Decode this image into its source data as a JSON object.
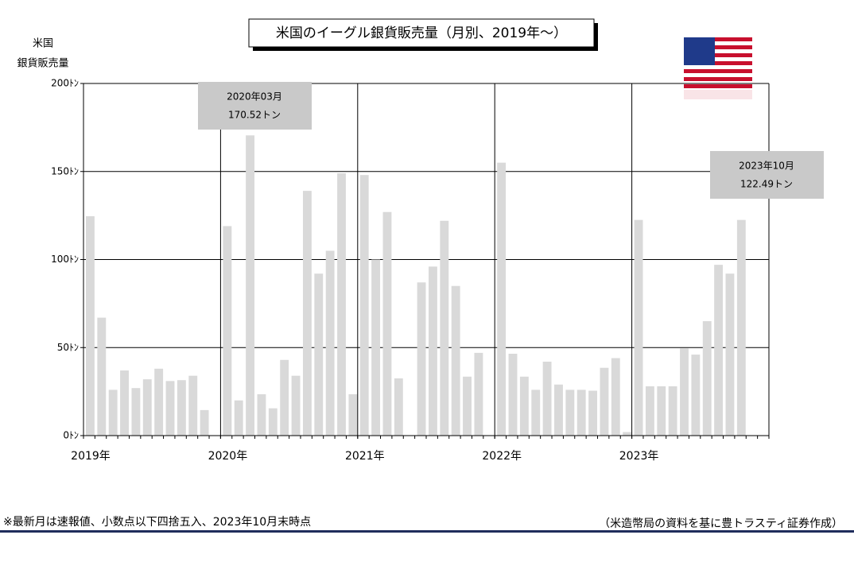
{
  "chart_data": {
    "type": "bar",
    "title": "米国のイーグル銀貨販売量（月別、2019年～）",
    "y_label": [
      "米国",
      "銀貨販売量"
    ],
    "categories": [
      "2019年",
      null,
      null,
      null,
      null,
      null,
      null,
      null,
      null,
      null,
      null,
      null,
      "2020年",
      null,
      null,
      null,
      null,
      null,
      null,
      null,
      null,
      null,
      null,
      null,
      "2021年",
      null,
      null,
      null,
      null,
      null,
      null,
      null,
      null,
      null,
      null,
      null,
      "2022年",
      null,
      null,
      null,
      null,
      null,
      null,
      null,
      null,
      null,
      null,
      null,
      "2023年",
      null,
      null,
      null,
      null,
      null,
      null,
      null,
      null,
      null,
      null,
      null
    ],
    "values": [
      124.6,
      67,
      26,
      37,
      27,
      32,
      38,
      31,
      31.5,
      34,
      14.5,
      0,
      119,
      20,
      170.52,
      23.5,
      15.5,
      43,
      34,
      139,
      92,
      105,
      149,
      23.5,
      148,
      100,
      127,
      32.5,
      0,
      87,
      96,
      122,
      85,
      33.5,
      47,
      0,
      155,
      46.5,
      33.5,
      26,
      42,
      29,
      26,
      26,
      25.5,
      38.5,
      44,
      2,
      122.5,
      28,
      28,
      28,
      49.5,
      46,
      65,
      97,
      92,
      122.49,
      null,
      null
    ],
    "color": "#d9d9d9",
    "ylim": [
      0,
      200
    ],
    "yticks": [
      {
        "value": 0,
        "label": "0ﾄﾝ"
      },
      {
        "value": 50,
        "label": "50ﾄﾝ"
      },
      {
        "value": 100,
        "label": "100ﾄﾝ"
      },
      {
        "value": 150,
        "label": "150ﾄﾝ"
      },
      {
        "value": 200,
        "label": "200ﾄﾝ"
      }
    ],
    "grid": true,
    "annotations": [
      {
        "lines": [
          "2020年03月",
          "170.52トン"
        ]
      },
      {
        "lines": [
          "2023年10月",
          "122.49トン"
        ]
      }
    ],
    "footnote": "※最新月は速報値、小数点以下四捨五入、2023年10月末時点",
    "source": "（米造幣局の資料を基に豊トラスティ証券作成）"
  }
}
